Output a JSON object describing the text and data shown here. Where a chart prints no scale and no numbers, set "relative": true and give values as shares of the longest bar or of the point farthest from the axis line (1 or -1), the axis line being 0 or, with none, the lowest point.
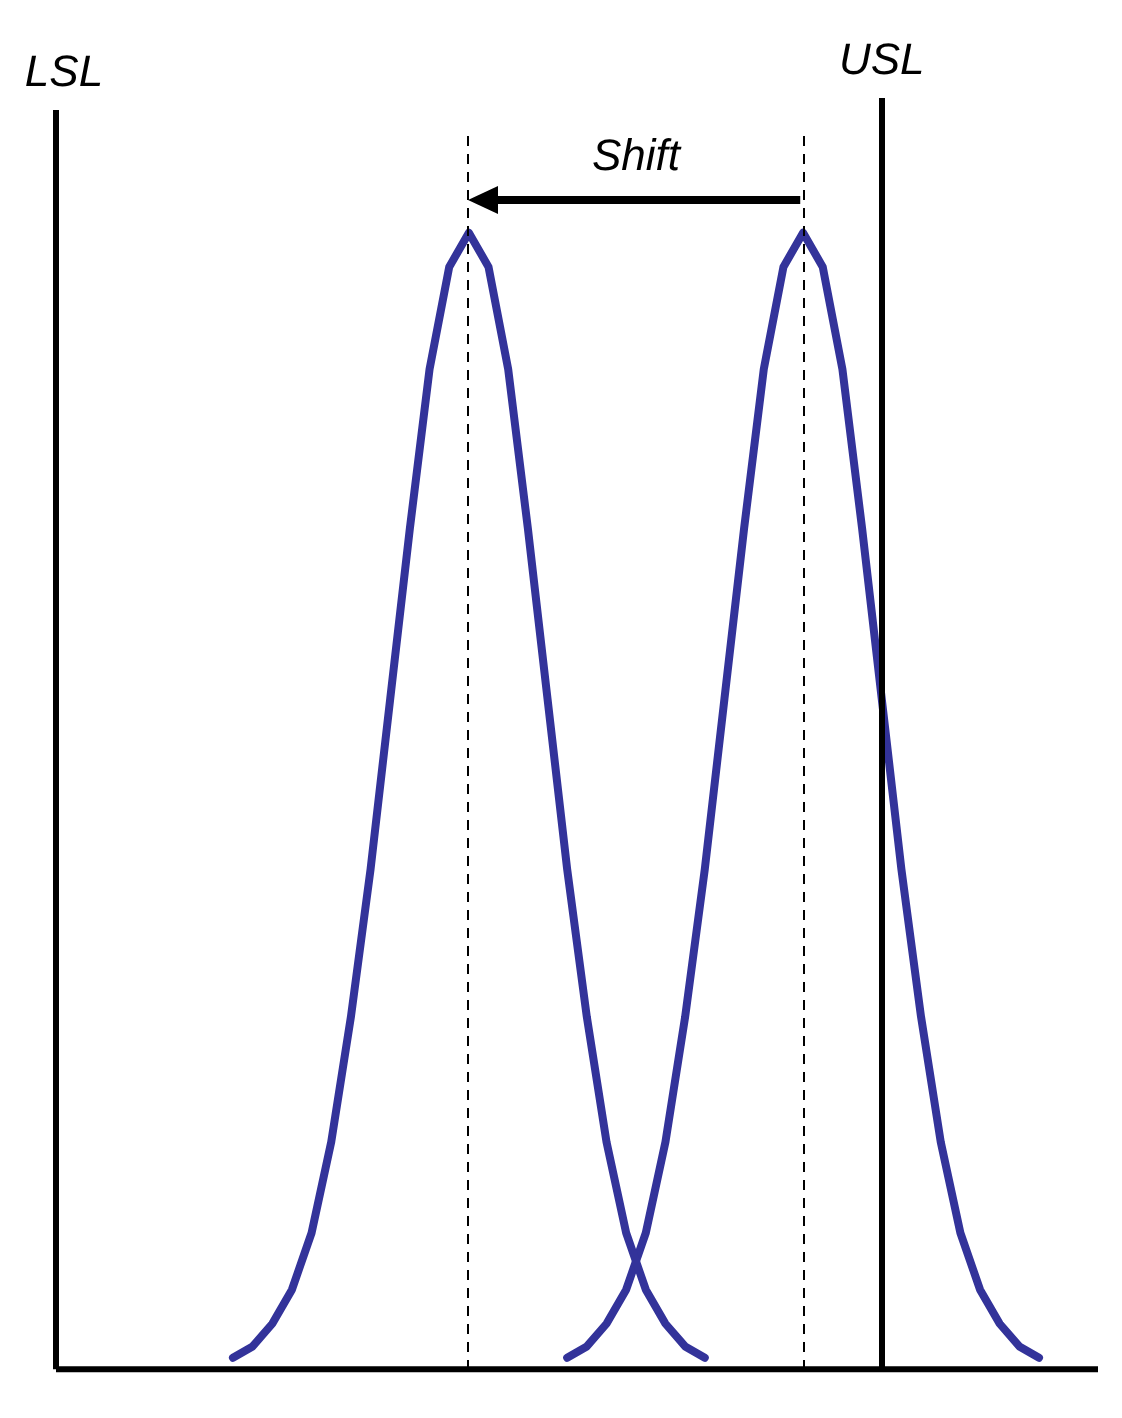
{
  "chart_data": {
    "type": "line",
    "relative": true,
    "legend": false,
    "grid": false,
    "marker": "none",
    "line_style": "solid",
    "categories": [
      null,
      null,
      null,
      null,
      null,
      null,
      null,
      null,
      null,
      null,
      null,
      null,
      null,
      null,
      null,
      null,
      null,
      null,
      null,
      null,
      null,
      null,
      null,
      null,
      null,
      null,
      null,
      null,
      null,
      null,
      null,
      null,
      null,
      null,
      null,
      null,
      null,
      null,
      null,
      null,
      null,
      null,
      null,
      null,
      null,
      null,
      null,
      null,
      null,
      null,
      null,
      null,
      null,
      null
    ],
    "series": [
      {
        "color": "#33339a",
        "values": [
          null,
          null,
          null,
          null,
          null,
          null,
          null,
          null,
          null,
          0.01,
          0.02,
          0.04,
          0.07,
          0.12,
          0.2,
          0.31,
          0.44,
          0.59,
          0.74,
          0.88,
          0.97,
          1,
          0.97,
          0.88,
          0.74,
          0.59,
          0.44,
          0.31,
          0.2,
          0.12,
          0.07,
          0.04,
          0.02,
          0.01,
          null,
          null,
          null,
          null,
          null,
          null,
          null,
          null,
          null,
          null,
          null,
          null,
          null,
          null,
          null,
          null,
          null,
          null,
          null,
          null
        ]
      },
      {
        "color": "#33339a",
        "values": [
          null,
          null,
          null,
          null,
          null,
          null,
          null,
          null,
          null,
          null,
          null,
          null,
          null,
          null,
          null,
          null,
          null,
          null,
          null,
          null,
          null,
          null,
          null,
          null,
          null,
          null,
          0.01,
          0.02,
          0.04,
          0.07,
          0.12,
          0.2,
          0.31,
          0.44,
          0.59,
          0.74,
          0.88,
          0.97,
          1,
          0.97,
          0.88,
          0.74,
          0.59,
          0.44,
          0.31,
          0.2,
          0.12,
          0.07,
          0.04,
          0.02,
          0.01,
          null,
          null,
          null
        ]
      }
    ],
    "annotations": [
      "LSL",
      "USL",
      "Shift"
    ]
  }
}
